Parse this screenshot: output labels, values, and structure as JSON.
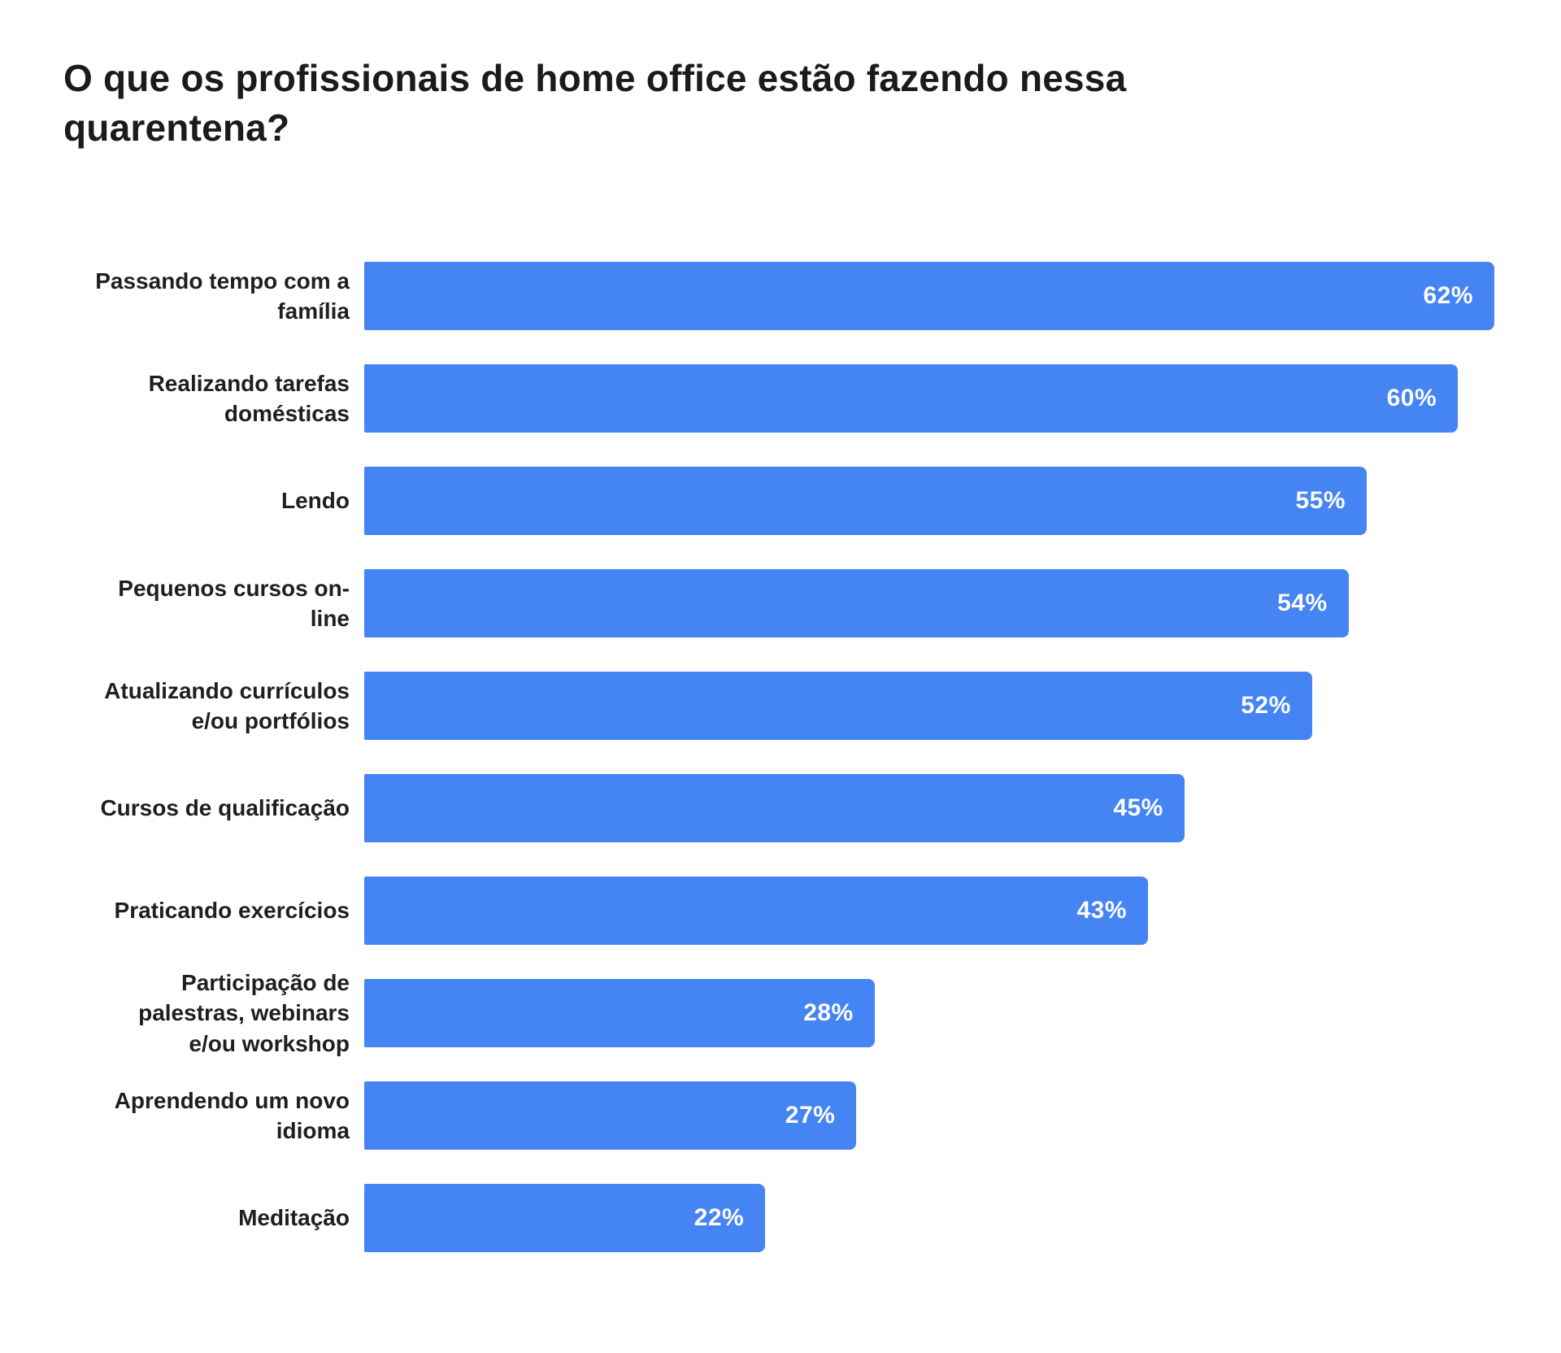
{
  "chart_data": {
    "type": "bar",
    "orientation": "horizontal",
    "title": "O que os profissionais de home office estão fazendo nessa quarentena?",
    "title_lines": [
      "O que os profissionais de home office estão fazendo nessa",
      "quarentena?"
    ],
    "categories": [
      "Passando tempo com a família",
      "Realizando tarefas domésticas",
      "Lendo",
      "Pequenos cursos on-line",
      "Atualizando currículos e/ou portfólios",
      "Cursos de qualificação",
      "Praticando exercícios",
      "Participação de palestras, webinars e/ou workshop",
      "Aprendendo um novo idioma",
      "Meditação"
    ],
    "category_lines": [
      [
        "Passando tempo com a",
        "família"
      ],
      [
        "Realizando tarefas",
        "domésticas"
      ],
      [
        "Lendo"
      ],
      [
        "Pequenos cursos on-",
        "line"
      ],
      [
        "Atualizando currículos",
        "e/ou portfólios"
      ],
      [
        "Cursos de qualificação"
      ],
      [
        "Praticando exercícios"
      ],
      [
        "Participação de",
        "palestras, webinars",
        "e/ou workshop"
      ],
      [
        "Aprendendo um novo",
        "idioma"
      ],
      [
        "Meditação"
      ]
    ],
    "values": [
      62,
      60,
      55,
      54,
      52,
      45,
      43,
      28,
      27,
      22
    ],
    "data_labels": [
      "62%",
      "60%",
      "55%",
      "54%",
      "52%",
      "45%",
      "43%",
      "28%",
      "27%",
      "22%"
    ],
    "xlabel": "",
    "ylabel": "",
    "xlim": [
      0,
      62
    ],
    "grid": false,
    "legend": false,
    "axes_visible": false,
    "colors": {
      "bar": "#4484F3",
      "data_label": "#FDFDFD",
      "category_label": "#1F1F1F",
      "title": "#1B1B1B",
      "background": "#FFFFFF"
    }
  }
}
